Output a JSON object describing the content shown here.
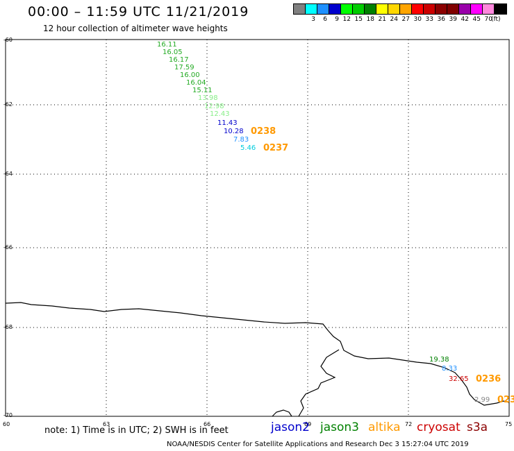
{
  "header": {
    "title": "00:00 – 11:59 UTC 11/21/2019",
    "subtitle": "12 hour collection of altimeter wave heights"
  },
  "legend": {
    "colors": [
      "#808080",
      "#00ffff",
      "#1e90ff",
      "#0000cd",
      "#00ff00",
      "#00cc00",
      "#008000",
      "#ffff00",
      "#ffd700",
      "#ffa500",
      "#ff0000",
      "#cc0000",
      "#8b0000",
      "#800000",
      "#9900aa",
      "#ff00ff",
      "#ff88dd",
      "#000000"
    ],
    "labels": [
      "3",
      "6",
      "9",
      "12",
      "15",
      "18",
      "21",
      "24",
      "27",
      "30",
      "33",
      "36",
      "39",
      "42",
      "45",
      "70"
    ],
    "unit": "(ft)"
  },
  "axes": {
    "lat_labels": [
      "-60",
      "-62",
      "-64",
      "-66",
      "-68",
      "-70"
    ],
    "lon_labels": [
      "60",
      "63",
      "66",
      "69",
      "72",
      "75"
    ]
  },
  "wave_labels": [
    {
      "text": "16.11",
      "color": "#22aa22"
    },
    {
      "text": "16.05",
      "color": "#22aa22"
    },
    {
      "text": "16.17",
      "color": "#22aa22"
    },
    {
      "text": "17.59",
      "color": "#22aa22"
    },
    {
      "text": "16.00",
      "color": "#22aa22"
    },
    {
      "text": "16.04",
      "color": "#22aa22"
    },
    {
      "text": "15.11",
      "color": "#22aa22"
    },
    {
      "text": "13.98",
      "color": "#88ee88"
    },
    {
      "text": "12.98",
      "color": "#88ee88"
    },
    {
      "text": "12.43",
      "color": "#88ee88"
    },
    {
      "text": "11.43",
      "color": "#0000cc"
    },
    {
      "text": "10.28",
      "color": "#0000cc"
    },
    {
      "text": "7.83",
      "color": "#1e90ff"
    },
    {
      "text": "5.46",
      "color": "#00ccdd"
    },
    {
      "text": "19.38",
      "color": "#008000"
    },
    {
      "text": "8.33",
      "color": "#1e90ff"
    },
    {
      "text": "32.65",
      "color": "#cc0000"
    },
    {
      "text": "2.99",
      "color": "#888888"
    }
  ],
  "pass_labels": [
    {
      "text": "0238",
      "color": "#ff9900"
    },
    {
      "text": "0237",
      "color": "#ff9900"
    },
    {
      "text": "0236",
      "color": "#ff9900"
    },
    {
      "text": "023",
      "color": "#ff9900"
    }
  ],
  "note": "note: 1) Time is in UTC; 2) SWH is in feet",
  "satellites": [
    {
      "text": "jason2",
      "color": "#0000cc"
    },
    {
      "text": "jason3",
      "color": "#008000"
    },
    {
      "text": "altika",
      "color": "#ff9900"
    },
    {
      "text": "cryosat",
      "color": "#cc0000"
    },
    {
      "text": "s3a",
      "color": "#8b0000"
    }
  ],
  "footer": "NOAA/NESDIS Center for Satellite Applications and Research     Dec  3 15:27:04 UTC 2019"
}
